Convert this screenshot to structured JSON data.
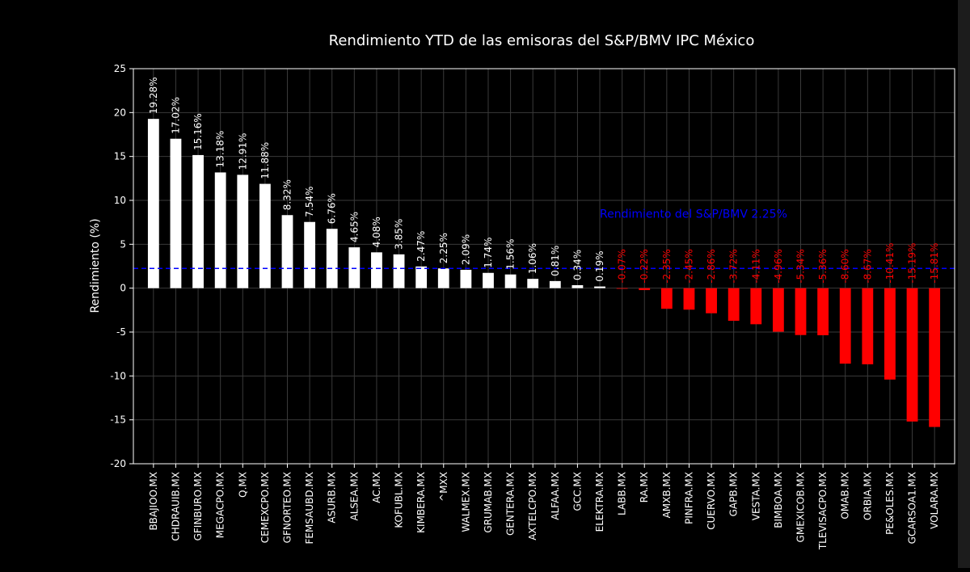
{
  "chart_data": {
    "type": "bar",
    "title": "Rendimiento YTD de las emisoras del S&P/BMV IPC México",
    "xlabel": "",
    "ylabel": "Rendimiento (%)",
    "ylim": [
      -20,
      25
    ],
    "yticks": [
      -20,
      -15,
      -10,
      -5,
      0,
      5,
      10,
      15,
      20,
      25
    ],
    "grid": true,
    "colors": {
      "background": "#000000",
      "positive": "#ffffff",
      "negative": "#ff0000",
      "reference": "#0000ff",
      "grid": "#3a3a3a",
      "text": "#ffffff"
    },
    "categories": [
      "BBAJIOO.MX",
      "CHDRAUIB.MX",
      "GFINBURO.MX",
      "MEGACPO.MX",
      "Q.MX",
      "CEMEXCPO.MX",
      "GFNORTEO.MX",
      "FEMSAUBD.MX",
      "ASURB.MX",
      "ALSEA.MX",
      "AC.MX",
      "KOFUBL.MX",
      "KIMBERA.MX",
      "^MXX",
      "WALMEX.MX",
      "GRUMAB.MX",
      "GENTERA.MX",
      "AXTELCPO.MX",
      "ALFAA.MX",
      "GCC.MX",
      "ELEKTRA.MX",
      "LABB.MX",
      "RA.MX",
      "AMXB.MX",
      "PINFRA.MX",
      "CUERVO.MX",
      "GAPB.MX",
      "VESTA.MX",
      "BIMBOA.MX",
      "GMEXICOB.MX",
      "TLEVISACPO.MX",
      "OMAB.MX",
      "ORBIA.MX",
      "PE&OLES.MX",
      "GCARSOA1.MX",
      "VOLARA.MX"
    ],
    "values": [
      19.28,
      17.02,
      15.16,
      13.18,
      12.91,
      11.88,
      8.32,
      7.54,
      6.76,
      4.65,
      4.08,
      3.85,
      2.47,
      2.25,
      2.09,
      1.74,
      1.56,
      1.06,
      0.81,
      0.34,
      0.19,
      -0.07,
      -0.22,
      -2.35,
      -2.45,
      -2.86,
      -3.72,
      -4.11,
      -4.96,
      -5.34,
      -5.36,
      -8.6,
      -8.67,
      -10.41,
      -15.19,
      -15.81
    ],
    "labels": [
      "19.28%",
      "17.02%",
      "15.16%",
      "13.18%",
      "12.91%",
      "11.88%",
      "8.32%",
      "7.54%",
      "6.76%",
      "4.65%",
      "4.08%",
      "3.85%",
      "2.47%",
      "2.25%",
      "2.09%",
      "1.74%",
      "1.56%",
      "1.06%",
      "0.81%",
      "0.34%",
      "0.19%",
      "-0.07%",
      "-0.22%",
      "-2.35%",
      "-2.45%",
      "-2.86%",
      "-3.72%",
      "-4.11%",
      "-4.96%",
      "-5.34%",
      "-5.36%",
      "-8.60%",
      "-8.67%",
      "-10.41%",
      "-15.19%",
      "-15.81%"
    ],
    "reference_line": {
      "value": 2.25,
      "label": "Rendimiento del S&P/BMV 2.25%"
    }
  }
}
